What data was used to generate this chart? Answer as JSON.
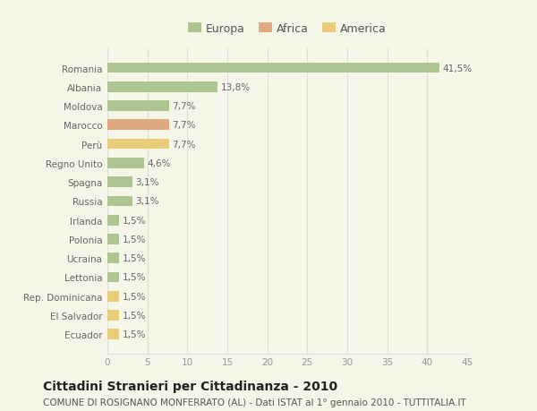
{
  "categories": [
    "Romania",
    "Albania",
    "Moldova",
    "Marocco",
    "Perù",
    "Regno Unito",
    "Spagna",
    "Russia",
    "Irlanda",
    "Polonia",
    "Ucraina",
    "Lettonia",
    "Rep. Dominicana",
    "El Salvador",
    "Ecuador"
  ],
  "values": [
    41.5,
    13.8,
    7.7,
    7.7,
    7.7,
    4.6,
    3.1,
    3.1,
    1.5,
    1.5,
    1.5,
    1.5,
    1.5,
    1.5,
    1.5
  ],
  "labels": [
    "41,5%",
    "13,8%",
    "7,7%",
    "7,7%",
    "7,7%",
    "4,6%",
    "3,1%",
    "3,1%",
    "1,5%",
    "1,5%",
    "1,5%",
    "1,5%",
    "1,5%",
    "1,5%",
    "1,5%"
  ],
  "continents": [
    "Europa",
    "Europa",
    "Europa",
    "Africa",
    "America",
    "Europa",
    "Europa",
    "Europa",
    "Europa",
    "Europa",
    "Europa",
    "Europa",
    "America",
    "America",
    "America"
  ],
  "colors": {
    "Europa": "#adc590",
    "Africa": "#e0aa80",
    "America": "#e8cc7a"
  },
  "xlim": [
    0,
    45
  ],
  "xticks": [
    0,
    5,
    10,
    15,
    20,
    25,
    30,
    35,
    40,
    45
  ],
  "title": "Cittadini Stranieri per Cittadinanza - 2010",
  "subtitle": "COMUNE DI ROSIGNANO MONFERRATO (AL) - Dati ISTAT al 1° gennaio 2010 - TUTTITALIA.IT",
  "background_color": "#f5f5e8",
  "grid_color": "#dddddd",
  "bar_height": 0.55,
  "title_fontsize": 10,
  "subtitle_fontsize": 7.5,
  "label_fontsize": 7.5,
  "tick_fontsize": 7.5,
  "legend_fontsize": 9
}
